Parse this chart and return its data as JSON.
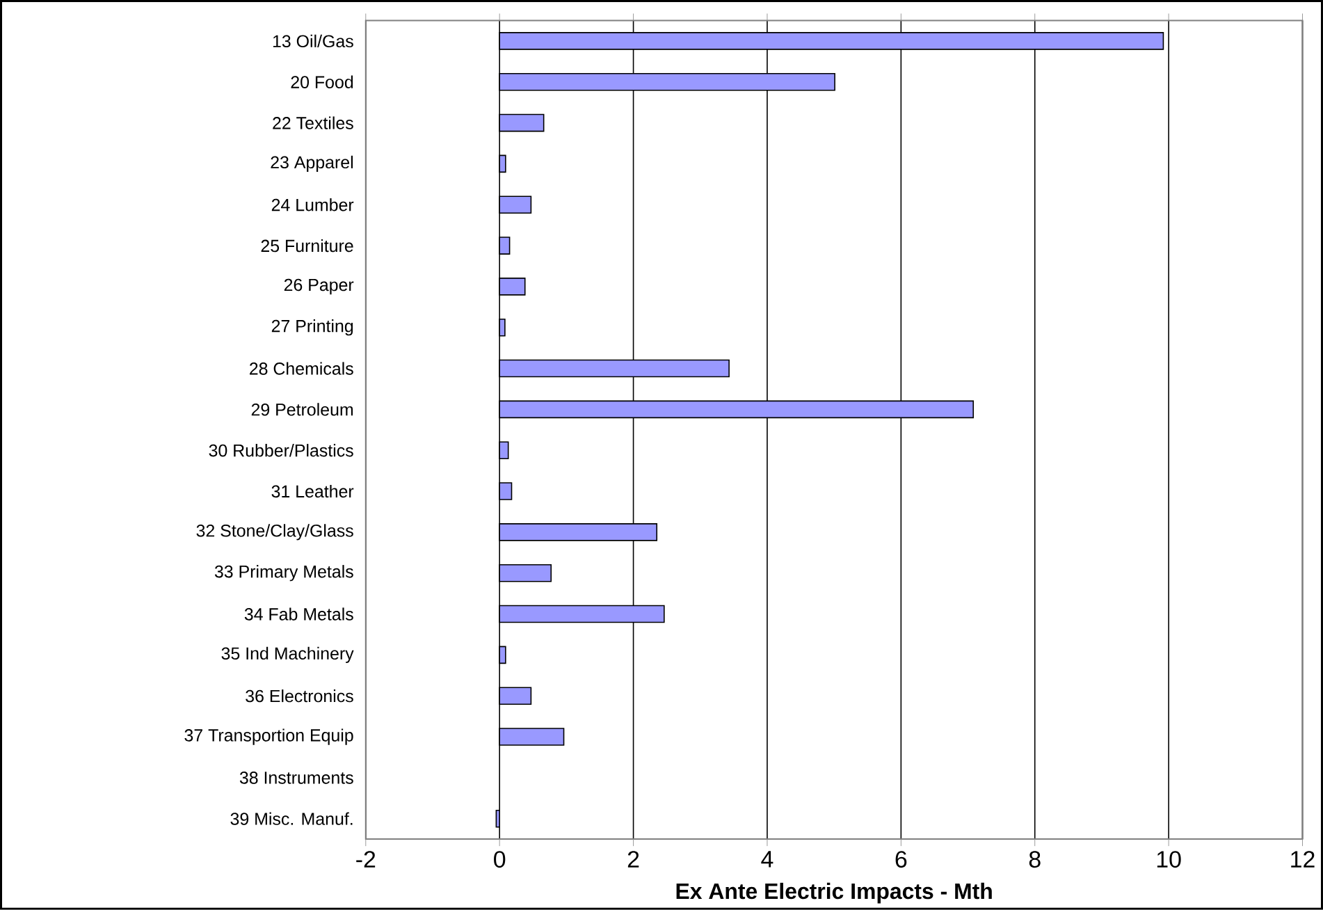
{
  "chart_data": {
    "type": "bar",
    "orientation": "horizontal",
    "xlabel": "Ex Ante Electric Impacts - Mth",
    "categories": [
      "13 Oil/Gas",
      "20 Food",
      "22 Textiles",
      "23 Apparel",
      "24 Lumber",
      "25 Furniture",
      "26 Paper",
      "27 Printing",
      "28 Chemicals",
      "29 Petroleum",
      "30 Rubber/Plastics",
      "31 Leather",
      "32 Stone/Clay/Glass",
      "33 Primary Metals",
      "34 Fab Metals",
      "35 Ind Machinery",
      "36 Electronics",
      "37 Transportion Equip",
      "38 Instruments",
      "39 Misc. Manuf."
    ],
    "values": [
      9.92,
      5.01,
      0.66,
      0.09,
      0.47,
      0.15,
      0.38,
      0.08,
      3.43,
      7.08,
      0.13,
      0.18,
      2.35,
      0.77,
      2.46,
      0.09,
      0.47,
      0.96,
      null,
      -0.05
    ],
    "color": "#9999ff",
    "xlim": [
      -2,
      12
    ],
    "xticks": [
      -2,
      0,
      2,
      4,
      6,
      8,
      10,
      12
    ],
    "grid": "x"
  }
}
